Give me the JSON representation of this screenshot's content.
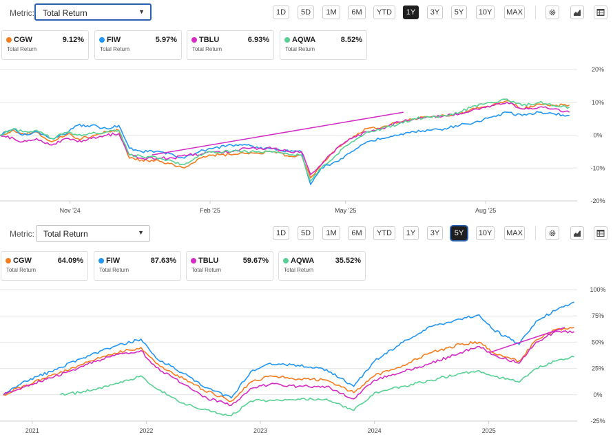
{
  "icons": [
    "gear-icon",
    "area-chart-icon",
    "table-icon"
  ],
  "colors": {
    "CGW": "#f57c1f",
    "FIW": "#2196f3",
    "TBLU": "#d42bc4",
    "AQWA": "#57d193",
    "trend": "#d42bc4"
  },
  "panels": [
    {
      "metric_label": "Metric:",
      "metric_value": "Total Return",
      "ranges": [
        "1D",
        "5D",
        "1M",
        "6M",
        "YTD",
        "1Y",
        "3Y",
        "5Y",
        "10Y",
        "MAX"
      ],
      "active_range": "1Y",
      "cards": [
        {
          "ticker": "CGW",
          "value": "9.12%",
          "sub": "Total Return"
        },
        {
          "ticker": "FIW",
          "value": "5.97%",
          "sub": "Total Return"
        },
        {
          "ticker": "TBLU",
          "value": "6.93%",
          "sub": "Total Return"
        },
        {
          "ticker": "AQWA",
          "value": "8.52%",
          "sub": "Total Return"
        }
      ]
    },
    {
      "metric_label": "Metric:",
      "metric_value": "Total Return",
      "ranges": [
        "1D",
        "5D",
        "1M",
        "6M",
        "YTD",
        "1Y",
        "3Y",
        "5Y",
        "10Y",
        "MAX"
      ],
      "active_range": "5Y",
      "cards": [
        {
          "ticker": "CGW",
          "value": "64.09%",
          "sub": "Total Return"
        },
        {
          "ticker": "FIW",
          "value": "87.63%",
          "sub": "Total Return"
        },
        {
          "ticker": "TBLU",
          "value": "59.67%",
          "sub": "Total Return"
        },
        {
          "ticker": "AQWA",
          "value": "35.52%",
          "sub": "Total Return"
        }
      ]
    }
  ],
  "chart_data": [
    {
      "type": "line",
      "title": "",
      "xlabel": "",
      "ylabel": "",
      "ylim": [
        -20,
        20
      ],
      "yticks": [
        20,
        10,
        0,
        -10,
        -20
      ],
      "ytick_labels": [
        "20%",
        "10%",
        "0%",
        "-10%",
        "-20%"
      ],
      "xlim": [
        "2024-09-16",
        "2025-10-01"
      ],
      "xtick_labels": [
        {
          "label": "Nov '24",
          "date": "2024-11-01"
        },
        {
          "label": "Feb '25",
          "date": "2025-02-01"
        },
        {
          "label": "May '25",
          "date": "2025-05-01"
        },
        {
          "label": "Aug '25",
          "date": "2025-08-01"
        }
      ],
      "grid": true,
      "legend": "top cards",
      "series": [
        {
          "name": "CGW",
          "x": [
            "2024-09-16",
            "2024-09-25",
            "2024-10-01",
            "2024-10-10",
            "2024-10-20",
            "2024-10-31",
            "2024-11-06",
            "2024-11-15",
            "2024-11-25",
            "2024-12-03",
            "2024-12-10",
            "2024-12-18",
            "2024-12-30",
            "2025-01-08",
            "2025-01-15",
            "2025-01-25",
            "2025-02-03",
            "2025-02-15",
            "2025-02-25",
            "2025-03-05",
            "2025-03-15",
            "2025-03-25",
            "2025-04-02",
            "2025-04-08",
            "2025-04-15",
            "2025-04-25",
            "2025-05-05",
            "2025-05-15",
            "2025-05-25",
            "2025-06-05",
            "2025-06-15",
            "2025-06-25",
            "2025-07-05",
            "2025-07-15",
            "2025-07-25",
            "2025-08-05",
            "2025-08-15",
            "2025-08-25",
            "2025-09-05",
            "2025-09-15",
            "2025-09-25"
          ],
          "y": [
            0,
            1.5,
            0.5,
            1,
            -2,
            0.5,
            -1,
            -0.5,
            1,
            1.5,
            -7,
            -7.5,
            -8,
            -9,
            -10,
            -7,
            -6,
            -6,
            -5.5,
            -5.5,
            -5,
            -6.5,
            -6,
            -13,
            -9,
            -4,
            -1,
            2,
            2.5,
            4,
            5,
            5.5,
            6,
            6.5,
            8,
            9,
            10.5,
            8,
            9.5,
            9,
            9.2
          ]
        },
        {
          "name": "FIW",
          "x": [
            "2024-09-16",
            "2024-09-25",
            "2024-10-01",
            "2024-10-10",
            "2024-10-20",
            "2024-10-31",
            "2024-11-06",
            "2024-11-15",
            "2024-11-25",
            "2024-12-03",
            "2024-12-10",
            "2024-12-18",
            "2024-12-30",
            "2025-01-08",
            "2025-01-15",
            "2025-01-25",
            "2025-02-03",
            "2025-02-15",
            "2025-02-25",
            "2025-03-05",
            "2025-03-15",
            "2025-03-25",
            "2025-04-02",
            "2025-04-08",
            "2025-04-15",
            "2025-04-25",
            "2025-05-05",
            "2025-05-15",
            "2025-05-25",
            "2025-06-05",
            "2025-06-15",
            "2025-06-25",
            "2025-07-05",
            "2025-07-15",
            "2025-07-25",
            "2025-08-05",
            "2025-08-15",
            "2025-08-25",
            "2025-09-05",
            "2025-09-15",
            "2025-09-25"
          ],
          "y": [
            0,
            2,
            0,
            1,
            -1,
            1,
            3,
            3,
            2,
            3,
            -4,
            -5,
            -5,
            -6,
            -7,
            -5,
            -4,
            -3,
            -3,
            -4,
            -4,
            -5,
            -5,
            -15,
            -10,
            -8,
            -5,
            -2,
            -1,
            0,
            1,
            1.5,
            2,
            3,
            4,
            5.5,
            7,
            6,
            7,
            6.5,
            6
          ]
        },
        {
          "name": "TBLU",
          "x": [
            "2024-09-16",
            "2024-09-25",
            "2024-10-01",
            "2024-10-10",
            "2024-10-20",
            "2024-10-31",
            "2024-11-06",
            "2024-11-15",
            "2024-11-25",
            "2024-12-03",
            "2024-12-10",
            "2024-12-18",
            "2024-12-30",
            "2025-01-08",
            "2025-01-15",
            "2025-01-25",
            "2025-02-03",
            "2025-02-15",
            "2025-02-25",
            "2025-03-05",
            "2025-03-15",
            "2025-03-25",
            "2025-04-02",
            "2025-04-08",
            "2025-04-15",
            "2025-04-25",
            "2025-05-05",
            "2025-05-15",
            "2025-05-25",
            "2025-06-05",
            "2025-06-15",
            "2025-06-25",
            "2025-07-05",
            "2025-07-15",
            "2025-07-25",
            "2025-08-05",
            "2025-08-15",
            "2025-08-25",
            "2025-09-05",
            "2025-09-15",
            "2025-09-25"
          ],
          "y": [
            0,
            -1,
            -2,
            -1,
            -3,
            -1,
            -2,
            -1,
            0,
            0.5,
            -6,
            -7,
            -7,
            -7,
            -6,
            -6,
            -5,
            -5,
            -4,
            -4,
            -4,
            -5,
            -5,
            -12,
            -9,
            -4,
            -1,
            1,
            2,
            4,
            5,
            5.5,
            6,
            6.5,
            8,
            9,
            10,
            8,
            8.5,
            8,
            7
          ]
        },
        {
          "name": "AQWA",
          "x": [
            "2024-09-16",
            "2024-09-25",
            "2024-10-01",
            "2024-10-10",
            "2024-10-20",
            "2024-10-31",
            "2024-11-06",
            "2024-11-15",
            "2024-11-25",
            "2024-12-03",
            "2024-12-10",
            "2024-12-18",
            "2024-12-30",
            "2025-01-08",
            "2025-01-15",
            "2025-01-25",
            "2025-02-03",
            "2025-02-15",
            "2025-02-25",
            "2025-03-05",
            "2025-03-15",
            "2025-03-25",
            "2025-04-02",
            "2025-04-08",
            "2025-04-15",
            "2025-04-25",
            "2025-05-05",
            "2025-05-15",
            "2025-05-25",
            "2025-06-05",
            "2025-06-15",
            "2025-06-25",
            "2025-07-05",
            "2025-07-15",
            "2025-07-25",
            "2025-08-05",
            "2025-08-15",
            "2025-08-25",
            "2025-09-05",
            "2025-09-15",
            "2025-09-25"
          ],
          "y": [
            0,
            2,
            1,
            1.5,
            -1,
            1,
            0,
            0.5,
            1,
            1.5,
            -6,
            -6.5,
            -7,
            -8,
            -9,
            -6,
            -5,
            -5,
            -5,
            -5,
            -5,
            -6,
            -6,
            -14,
            -10,
            -6,
            -2,
            1,
            2,
            3.5,
            5,
            5.5,
            6,
            7,
            9,
            10,
            11,
            9,
            10,
            9,
            8.5
          ]
        }
      ],
      "trendline": {
        "x": [
          "2024-12-25",
          "2025-06-08"
        ],
        "y": [
          -6,
          7
        ]
      }
    },
    {
      "type": "line",
      "title": "",
      "xlabel": "",
      "ylabel": "",
      "ylim": [
        -25,
        100
      ],
      "yticks": [
        100,
        75,
        50,
        25,
        0,
        -25
      ],
      "ytick_labels": [
        "100%",
        "75%",
        "50%",
        "25%",
        "0%",
        "-25%"
      ],
      "xlim": [
        "2020-09-20",
        "2025-10-15"
      ],
      "xtick_labels": [
        {
          "label": "2021",
          "date": "2021-01-01"
        },
        {
          "label": "2022",
          "date": "2022-01-01"
        },
        {
          "label": "2023",
          "date": "2023-01-01"
        },
        {
          "label": "2024",
          "date": "2024-01-01"
        },
        {
          "label": "2025",
          "date": "2025-01-01"
        }
      ],
      "grid": true,
      "legend": "top cards",
      "series": [
        {
          "name": "FIW",
          "x": [
            "2020-10-01",
            "2020-12-01",
            "2021-03-01",
            "2021-06-01",
            "2021-09-01",
            "2021-12-15",
            "2022-02-01",
            "2022-05-01",
            "2022-07-01",
            "2022-09-30",
            "2022-12-01",
            "2023-02-01",
            "2023-05-01",
            "2023-08-01",
            "2023-10-27",
            "2024-01-01",
            "2024-04-01",
            "2024-07-01",
            "2024-10-01",
            "2024-12-01",
            "2025-01-15",
            "2025-04-08",
            "2025-06-01",
            "2025-08-01",
            "2025-10-01"
          ],
          "y": [
            0,
            12,
            22,
            34,
            44,
            53,
            35,
            20,
            8,
            -3,
            22,
            30,
            28,
            24,
            8,
            32,
            50,
            65,
            72,
            76,
            62,
            48,
            70,
            80,
            88
          ]
        },
        {
          "name": "CGW",
          "x": [
            "2020-10-01",
            "2020-12-01",
            "2021-03-01",
            "2021-06-01",
            "2021-09-01",
            "2021-12-15",
            "2022-02-01",
            "2022-05-01",
            "2022-07-01",
            "2022-09-30",
            "2022-12-01",
            "2023-02-01",
            "2023-05-01",
            "2023-08-01",
            "2023-10-27",
            "2024-01-01",
            "2024-04-01",
            "2024-07-01",
            "2024-10-01",
            "2024-12-01",
            "2025-01-15",
            "2025-04-08",
            "2025-06-01",
            "2025-08-01",
            "2025-10-01"
          ],
          "y": [
            0,
            8,
            18,
            28,
            38,
            45,
            30,
            15,
            5,
            -6,
            12,
            18,
            15,
            14,
            2,
            18,
            28,
            40,
            48,
            50,
            40,
            32,
            52,
            62,
            64
          ]
        },
        {
          "name": "TBLU",
          "x": [
            "2020-10-01",
            "2020-12-01",
            "2021-03-01",
            "2021-06-01",
            "2021-09-01",
            "2021-12-15",
            "2022-02-01",
            "2022-05-01",
            "2022-07-01",
            "2022-09-30",
            "2022-12-01",
            "2023-02-01",
            "2023-05-01",
            "2023-08-01",
            "2023-10-27",
            "2024-01-01",
            "2024-04-01",
            "2024-07-01",
            "2024-10-01",
            "2024-12-01",
            "2025-01-15",
            "2025-04-08",
            "2025-06-01",
            "2025-08-01",
            "2025-10-01"
          ],
          "y": [
            0,
            7,
            16,
            26,
            36,
            42,
            26,
            10,
            -2,
            -10,
            6,
            10,
            8,
            8,
            -4,
            14,
            22,
            30,
            40,
            46,
            38,
            30,
            50,
            60,
            60
          ]
        },
        {
          "name": "AQWA",
          "x": [
            "2021-04-01",
            "2021-06-01",
            "2021-09-01",
            "2021-12-15",
            "2022-02-01",
            "2022-05-01",
            "2022-07-01",
            "2022-09-30",
            "2022-12-01",
            "2023-02-01",
            "2023-05-01",
            "2023-08-01",
            "2023-10-27",
            "2024-01-01",
            "2024-04-01",
            "2024-07-01",
            "2024-10-01",
            "2024-12-01",
            "2025-01-15",
            "2025-04-08",
            "2025-06-01",
            "2025-08-01",
            "2025-10-01"
          ],
          "y": [
            0,
            2,
            8,
            18,
            6,
            -8,
            -14,
            -20,
            -6,
            -5,
            -4,
            -4,
            -15,
            2,
            8,
            14,
            20,
            23,
            18,
            12,
            25,
            32,
            36
          ]
        }
      ],
      "trendline": {
        "x": [
          "2025-01-01",
          "2025-09-01"
        ],
        "y": [
          40,
          64
        ]
      }
    }
  ]
}
